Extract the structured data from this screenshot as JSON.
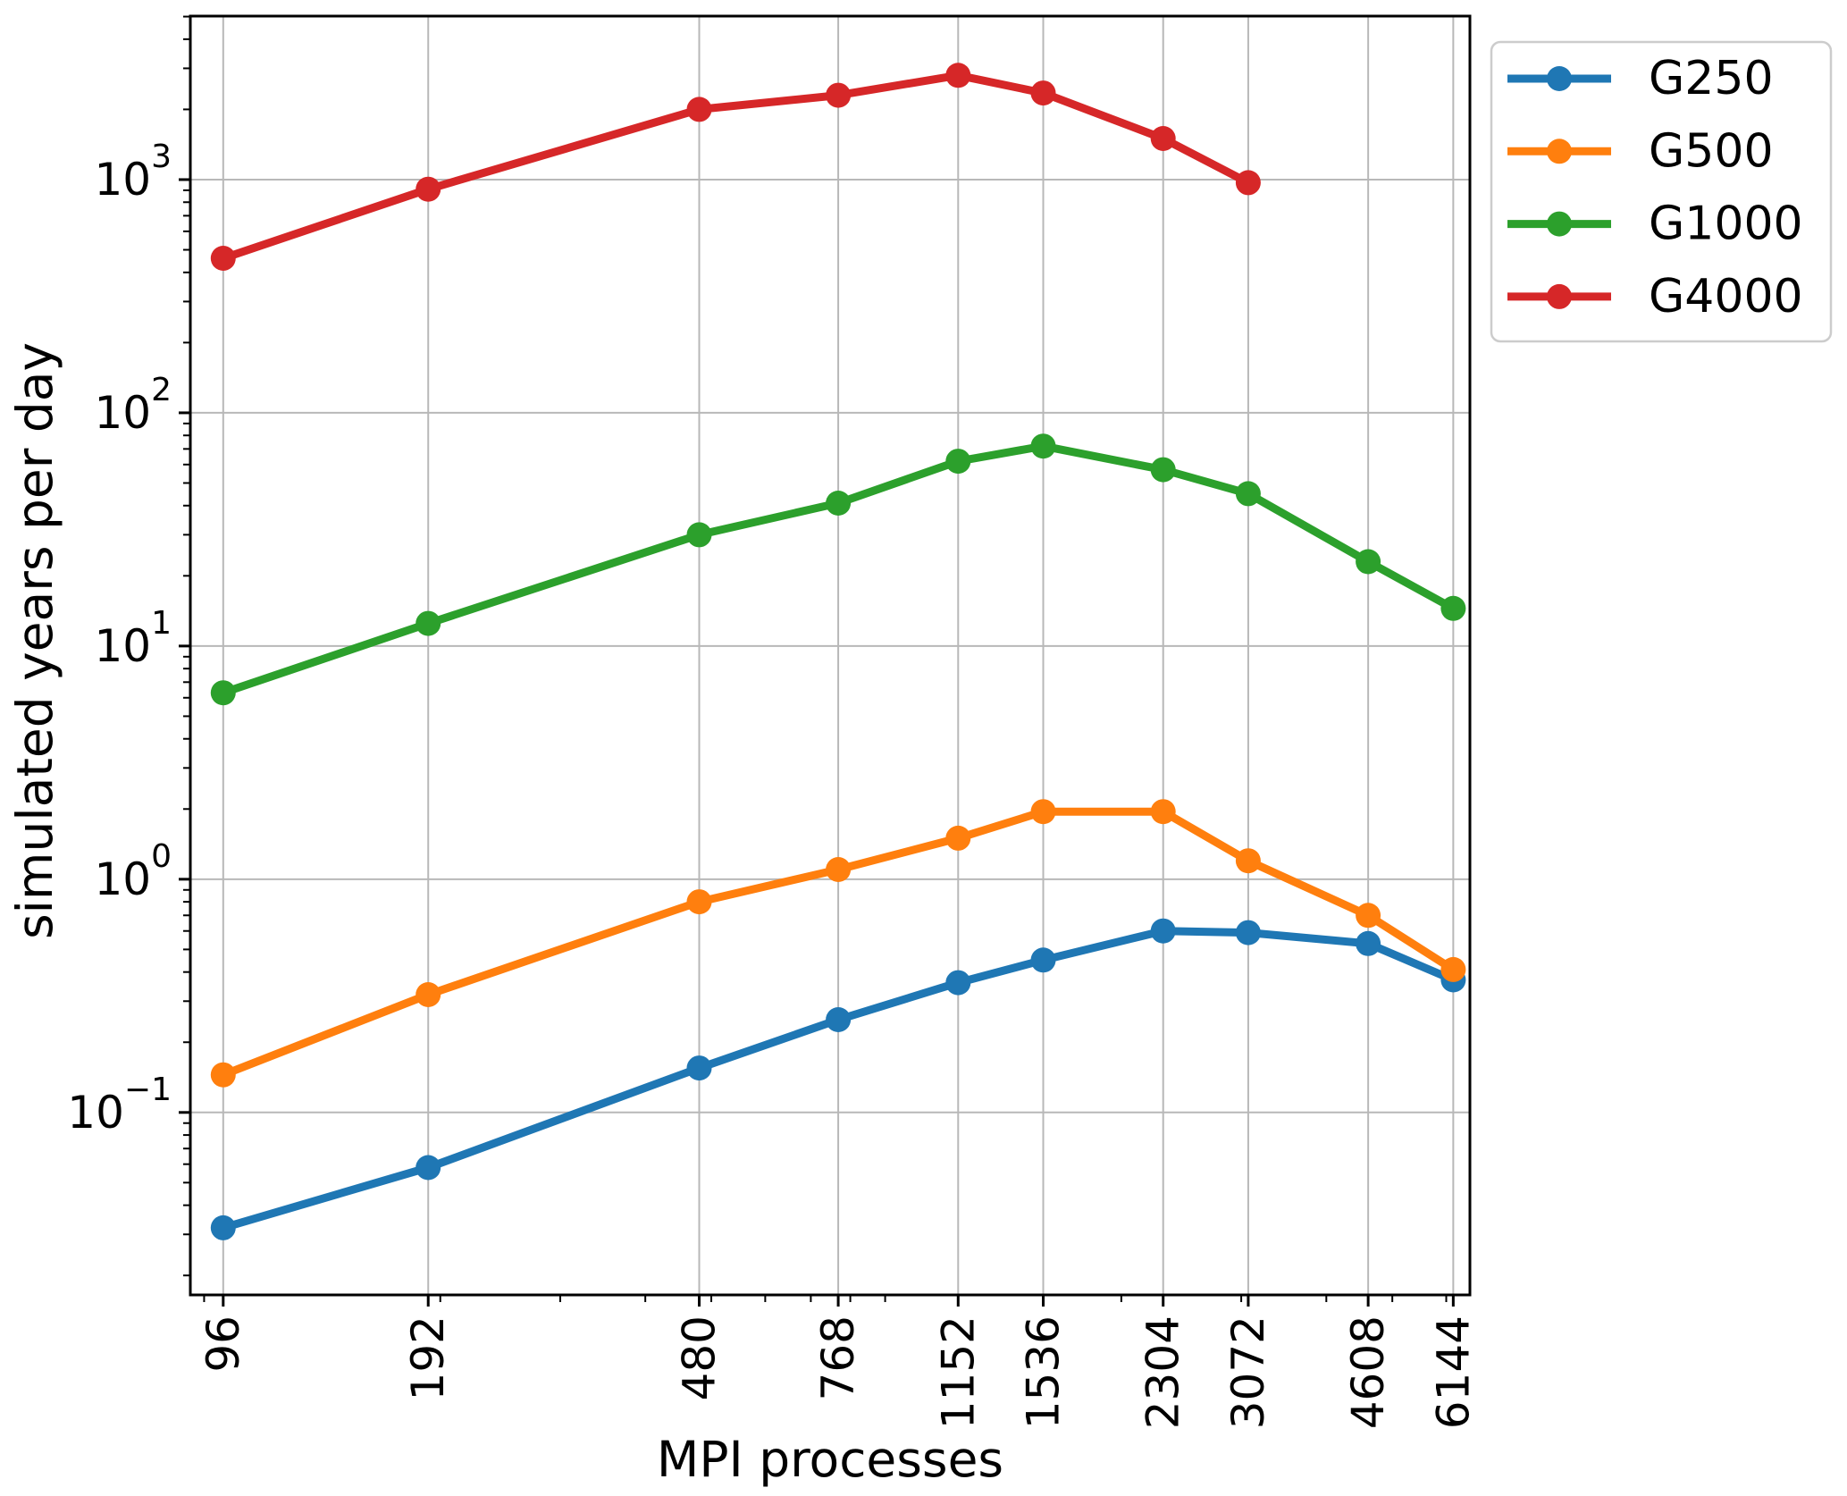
{
  "chart_data": {
    "type": "line",
    "title": "",
    "xlabel": "MPI processes",
    "ylabel": "simulated years per day",
    "x_scale": "log",
    "y_scale": "log",
    "xlim": [
      85.9,
      6500
    ],
    "ylim": [
      0.0165,
      5025
    ],
    "grid": true,
    "x": [
      96,
      192,
      480,
      768,
      1152,
      1536,
      2304,
      3072,
      4608,
      6144
    ],
    "x_tick_labels": [
      "96",
      "192",
      "480",
      "768",
      "1152",
      "1536",
      "2304",
      "3072",
      "4608",
      "6144"
    ],
    "y_ticks": [
      {
        "value": 0.1,
        "base": "10",
        "exp": "−1"
      },
      {
        "value": 1,
        "base": "10",
        "exp": "0"
      },
      {
        "value": 10,
        "base": "10",
        "exp": "1"
      },
      {
        "value": 100,
        "base": "10",
        "exp": "2"
      },
      {
        "value": 1000,
        "base": "10",
        "exp": "3"
      }
    ],
    "series": [
      {
        "name": "G250",
        "color": "#1f77b4",
        "marker": "circle",
        "values": [
          0.032,
          0.058,
          0.155,
          0.25,
          0.36,
          0.45,
          0.6,
          0.59,
          0.53,
          0.37
        ]
      },
      {
        "name": "G500",
        "color": "#ff7f0e",
        "marker": "circle",
        "values": [
          0.145,
          0.32,
          0.8,
          1.1,
          1.5,
          1.95,
          1.95,
          1.2,
          0.7,
          0.41
        ]
      },
      {
        "name": "G1000",
        "color": "#2ca02c",
        "marker": "circle",
        "values": [
          6.3,
          12.5,
          30,
          41,
          62,
          72,
          57,
          45,
          23,
          14.5
        ]
      },
      {
        "name": "G4000",
        "color": "#d62728",
        "marker": "circle",
        "values": [
          460,
          910,
          2000,
          2300,
          2800,
          2350,
          1500,
          970
        ]
      }
    ],
    "legend": {
      "position": "outside upper right",
      "labels": [
        "G250",
        "G500",
        "G1000",
        "G4000"
      ]
    },
    "grid_color": "#b8b8b8",
    "spine_color": "#000000"
  }
}
